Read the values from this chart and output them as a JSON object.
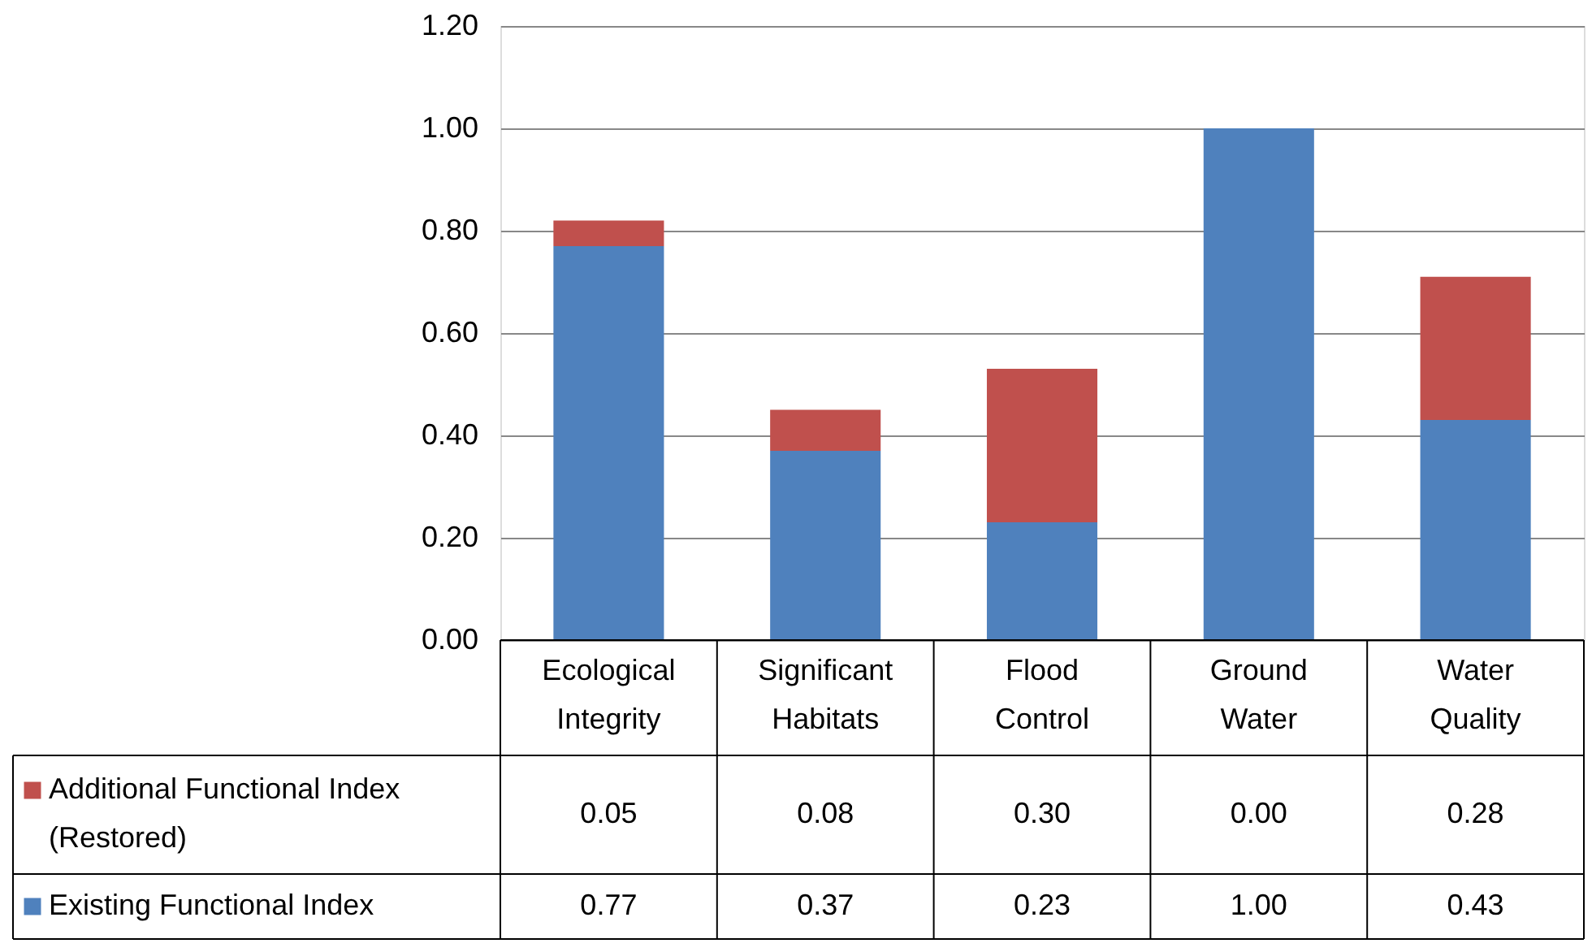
{
  "chart_data": {
    "type": "bar",
    "stacked": true,
    "categories": [
      "Ecological Integrity",
      "Significant Habitats",
      "Flood Control",
      "Ground Water",
      "Water Quality"
    ],
    "series": [
      {
        "name": "Existing Functional Index",
        "color": "#4f81bd",
        "values": [
          0.77,
          0.37,
          0.23,
          1.0,
          0.43
        ],
        "value_labels": [
          "0.77",
          "0.37",
          "0.23",
          "1.00",
          "0.43"
        ]
      },
      {
        "name": "Additional Functional Index (Restored)",
        "color": "#c0504d",
        "values": [
          0.05,
          0.08,
          0.3,
          0.0,
          0.28
        ],
        "value_labels": [
          "0.05",
          "0.08",
          "0.30",
          "0.00",
          "0.28"
        ]
      }
    ],
    "ylim": [
      0,
      1.2
    ],
    "yticks": [
      {
        "value": 0,
        "label": "0.00"
      },
      {
        "value": 0.2,
        "label": "0.20"
      },
      {
        "value": 0.4,
        "label": "0.40"
      },
      {
        "value": 0.6,
        "label": "0.60"
      },
      {
        "value": 0.8,
        "label": "0.80"
      },
      {
        "value": 1.0,
        "label": "1.00"
      },
      {
        "value": 1.2,
        "label": "1.20"
      }
    ],
    "grid": "y",
    "legend": "bottom left"
  }
}
